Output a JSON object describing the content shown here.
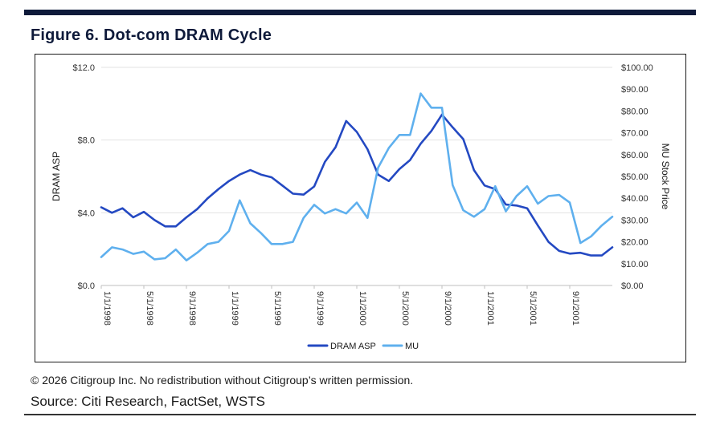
{
  "header": {
    "title": "Figure 6. Dot-com DRAM Cycle"
  },
  "footer": {
    "copyright": "© 2026 Citigroup Inc. No redistribution without Citigroup’s written permission.",
    "source": "Source: Citi Research, FactSet, WSTS"
  },
  "chart_data": {
    "type": "line",
    "title": "",
    "x_tick_labels": [
      "1/1/1998",
      "5/1/1998",
      "9/1/1998",
      "1/1/1999",
      "5/1/1999",
      "9/1/1999",
      "1/1/2000",
      "5/1/2000",
      "9/1/2000",
      "1/1/2001",
      "5/1/2001",
      "9/1/2001"
    ],
    "x": [
      "1998-01",
      "1998-02",
      "1998-03",
      "1998-04",
      "1998-05",
      "1998-06",
      "1998-07",
      "1998-08",
      "1998-09",
      "1998-10",
      "1998-11",
      "1998-12",
      "1999-01",
      "1999-02",
      "1999-03",
      "1999-04",
      "1999-05",
      "1999-06",
      "1999-07",
      "1999-08",
      "1999-09",
      "1999-10",
      "1999-11",
      "1999-12",
      "2000-01",
      "2000-02",
      "2000-03",
      "2000-04",
      "2000-05",
      "2000-06",
      "2000-07",
      "2000-08",
      "2000-09",
      "2000-10",
      "2000-11",
      "2000-12",
      "2001-01",
      "2001-02",
      "2001-03",
      "2001-04",
      "2001-05",
      "2001-06",
      "2001-07",
      "2001-08",
      "2001-09",
      "2001-10",
      "2001-11",
      "2001-12",
      "2002-01"
    ],
    "ylabel": "DRAM ASP",
    "ylabel_right": "MU Stock Price",
    "ylim": [
      0,
      12
    ],
    "ylim_right": [
      0,
      100
    ],
    "y_ticks": [
      "$0.0",
      "$4.0",
      "$8.0",
      "$12.0"
    ],
    "y_ticks_right": [
      "$0.00",
      "$10.00",
      "$20.00",
      "$30.00",
      "$40.00",
      "$50.00",
      "$60.00",
      "$70.00",
      "$80.00",
      "$90.00",
      "$100.00"
    ],
    "grid": "horizontal",
    "legend_position": "bottom",
    "series": [
      {
        "name": "DRAM ASP",
        "axis": "left",
        "color": "#2449c2",
        "values": [
          4.3,
          4.0,
          4.25,
          3.75,
          4.05,
          3.6,
          3.25,
          3.25,
          3.75,
          4.2,
          4.8,
          5.3,
          5.75,
          6.1,
          6.35,
          6.1,
          5.95,
          5.5,
          5.05,
          5.0,
          5.45,
          6.8,
          7.6,
          9.05,
          8.45,
          7.5,
          6.1,
          5.75,
          6.4,
          6.9,
          7.8,
          8.5,
          9.4,
          8.7,
          8.05,
          6.35,
          5.5,
          5.3,
          4.45,
          4.4,
          4.25,
          3.3,
          2.4,
          1.9,
          1.75,
          1.8,
          1.65,
          1.65,
          2.1
        ]
      },
      {
        "name": "MU",
        "axis": "right",
        "color": "#5fb0ee",
        "values": [
          13,
          17.5,
          16.5,
          14.5,
          15.5,
          12,
          12.5,
          16.5,
          11.5,
          15,
          19,
          20,
          25,
          39,
          28.5,
          24,
          19,
          19,
          20,
          31,
          37,
          33,
          35,
          33,
          38,
          31,
          54,
          63,
          69,
          69,
          88,
          81.5,
          81.5,
          46,
          34.5,
          31.5,
          35,
          45.5,
          34,
          41,
          45.5,
          37.5,
          41,
          41.5,
          38,
          19.5,
          22.5,
          27.5,
          31.5
        ]
      }
    ]
  }
}
